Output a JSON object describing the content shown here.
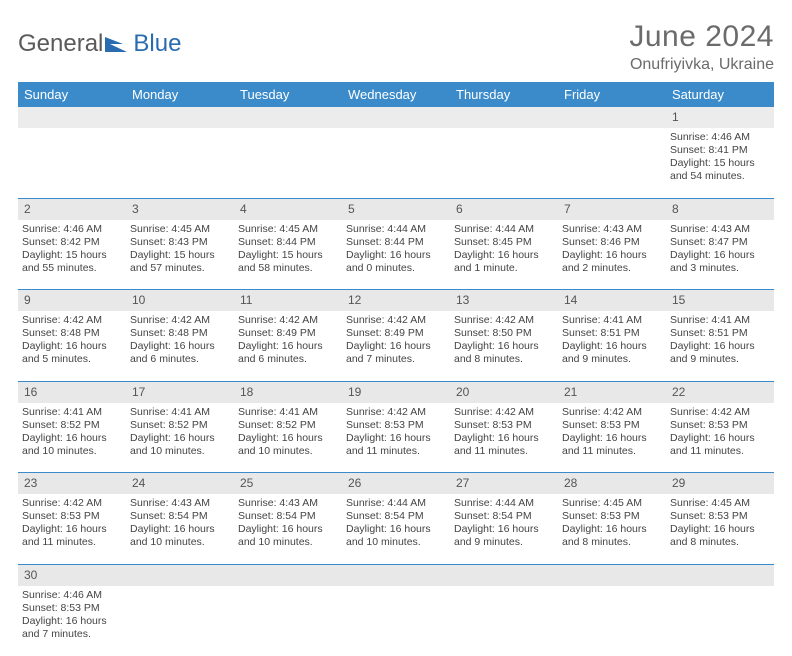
{
  "logo": {
    "word1": "General",
    "word2": "Blue"
  },
  "title": "June 2024",
  "location": "Onufriyivka, Ukraine",
  "colors": {
    "header_bg": "#3b8bca",
    "header_text": "#ffffff",
    "daynum_bg": "#e8e8e8",
    "border": "#3b8bca",
    "title_color": "#6b6b6b",
    "logo_gray": "#5a5a5a",
    "logo_blue": "#2a6cb0"
  },
  "day_headers": [
    "Sunday",
    "Monday",
    "Tuesday",
    "Wednesday",
    "Thursday",
    "Friday",
    "Saturday"
  ],
  "weeks": [
    {
      "nums": [
        "",
        "",
        "",
        "",
        "",
        "",
        "1"
      ],
      "cells": [
        null,
        null,
        null,
        null,
        null,
        null,
        {
          "sunrise": "Sunrise: 4:46 AM",
          "sunset": "Sunset: 8:41 PM",
          "daylight": "Daylight: 15 hours and 54 minutes."
        }
      ]
    },
    {
      "nums": [
        "2",
        "3",
        "4",
        "5",
        "6",
        "7",
        "8"
      ],
      "cells": [
        {
          "sunrise": "Sunrise: 4:46 AM",
          "sunset": "Sunset: 8:42 PM",
          "daylight": "Daylight: 15 hours and 55 minutes."
        },
        {
          "sunrise": "Sunrise: 4:45 AM",
          "sunset": "Sunset: 8:43 PM",
          "daylight": "Daylight: 15 hours and 57 minutes."
        },
        {
          "sunrise": "Sunrise: 4:45 AM",
          "sunset": "Sunset: 8:44 PM",
          "daylight": "Daylight: 15 hours and 58 minutes."
        },
        {
          "sunrise": "Sunrise: 4:44 AM",
          "sunset": "Sunset: 8:44 PM",
          "daylight": "Daylight: 16 hours and 0 minutes."
        },
        {
          "sunrise": "Sunrise: 4:44 AM",
          "sunset": "Sunset: 8:45 PM",
          "daylight": "Daylight: 16 hours and 1 minute."
        },
        {
          "sunrise": "Sunrise: 4:43 AM",
          "sunset": "Sunset: 8:46 PM",
          "daylight": "Daylight: 16 hours and 2 minutes."
        },
        {
          "sunrise": "Sunrise: 4:43 AM",
          "sunset": "Sunset: 8:47 PM",
          "daylight": "Daylight: 16 hours and 3 minutes."
        }
      ]
    },
    {
      "nums": [
        "9",
        "10",
        "11",
        "12",
        "13",
        "14",
        "15"
      ],
      "cells": [
        {
          "sunrise": "Sunrise: 4:42 AM",
          "sunset": "Sunset: 8:48 PM",
          "daylight": "Daylight: 16 hours and 5 minutes."
        },
        {
          "sunrise": "Sunrise: 4:42 AM",
          "sunset": "Sunset: 8:48 PM",
          "daylight": "Daylight: 16 hours and 6 minutes."
        },
        {
          "sunrise": "Sunrise: 4:42 AM",
          "sunset": "Sunset: 8:49 PM",
          "daylight": "Daylight: 16 hours and 6 minutes."
        },
        {
          "sunrise": "Sunrise: 4:42 AM",
          "sunset": "Sunset: 8:49 PM",
          "daylight": "Daylight: 16 hours and 7 minutes."
        },
        {
          "sunrise": "Sunrise: 4:42 AM",
          "sunset": "Sunset: 8:50 PM",
          "daylight": "Daylight: 16 hours and 8 minutes."
        },
        {
          "sunrise": "Sunrise: 4:41 AM",
          "sunset": "Sunset: 8:51 PM",
          "daylight": "Daylight: 16 hours and 9 minutes."
        },
        {
          "sunrise": "Sunrise: 4:41 AM",
          "sunset": "Sunset: 8:51 PM",
          "daylight": "Daylight: 16 hours and 9 minutes."
        }
      ]
    },
    {
      "nums": [
        "16",
        "17",
        "18",
        "19",
        "20",
        "21",
        "22"
      ],
      "cells": [
        {
          "sunrise": "Sunrise: 4:41 AM",
          "sunset": "Sunset: 8:52 PM",
          "daylight": "Daylight: 16 hours and 10 minutes."
        },
        {
          "sunrise": "Sunrise: 4:41 AM",
          "sunset": "Sunset: 8:52 PM",
          "daylight": "Daylight: 16 hours and 10 minutes."
        },
        {
          "sunrise": "Sunrise: 4:41 AM",
          "sunset": "Sunset: 8:52 PM",
          "daylight": "Daylight: 16 hours and 10 minutes."
        },
        {
          "sunrise": "Sunrise: 4:42 AM",
          "sunset": "Sunset: 8:53 PM",
          "daylight": "Daylight: 16 hours and 11 minutes."
        },
        {
          "sunrise": "Sunrise: 4:42 AM",
          "sunset": "Sunset: 8:53 PM",
          "daylight": "Daylight: 16 hours and 11 minutes."
        },
        {
          "sunrise": "Sunrise: 4:42 AM",
          "sunset": "Sunset: 8:53 PM",
          "daylight": "Daylight: 16 hours and 11 minutes."
        },
        {
          "sunrise": "Sunrise: 4:42 AM",
          "sunset": "Sunset: 8:53 PM",
          "daylight": "Daylight: 16 hours and 11 minutes."
        }
      ]
    },
    {
      "nums": [
        "23",
        "24",
        "25",
        "26",
        "27",
        "28",
        "29"
      ],
      "cells": [
        {
          "sunrise": "Sunrise: 4:42 AM",
          "sunset": "Sunset: 8:53 PM",
          "daylight": "Daylight: 16 hours and 11 minutes."
        },
        {
          "sunrise": "Sunrise: 4:43 AM",
          "sunset": "Sunset: 8:54 PM",
          "daylight": "Daylight: 16 hours and 10 minutes."
        },
        {
          "sunrise": "Sunrise: 4:43 AM",
          "sunset": "Sunset: 8:54 PM",
          "daylight": "Daylight: 16 hours and 10 minutes."
        },
        {
          "sunrise": "Sunrise: 4:44 AM",
          "sunset": "Sunset: 8:54 PM",
          "daylight": "Daylight: 16 hours and 10 minutes."
        },
        {
          "sunrise": "Sunrise: 4:44 AM",
          "sunset": "Sunset: 8:54 PM",
          "daylight": "Daylight: 16 hours and 9 minutes."
        },
        {
          "sunrise": "Sunrise: 4:45 AM",
          "sunset": "Sunset: 8:53 PM",
          "daylight": "Daylight: 16 hours and 8 minutes."
        },
        {
          "sunrise": "Sunrise: 4:45 AM",
          "sunset": "Sunset: 8:53 PM",
          "daylight": "Daylight: 16 hours and 8 minutes."
        }
      ]
    },
    {
      "nums": [
        "30",
        "",
        "",
        "",
        "",
        "",
        ""
      ],
      "cells": [
        {
          "sunrise": "Sunrise: 4:46 AM",
          "sunset": "Sunset: 8:53 PM",
          "daylight": "Daylight: 16 hours and 7 minutes."
        },
        null,
        null,
        null,
        null,
        null,
        null
      ]
    }
  ]
}
